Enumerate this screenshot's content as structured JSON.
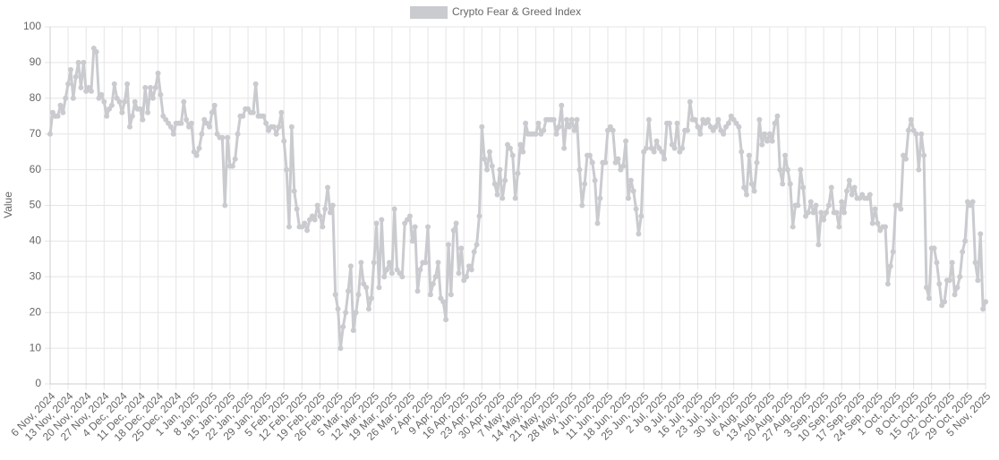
{
  "chart_data": {
    "type": "line",
    "y_label": "Value",
    "legend": "top",
    "grid": true,
    "ylim": [
      0,
      100
    ],
    "yticks": [
      0,
      10,
      20,
      30,
      40,
      50,
      60,
      70,
      80,
      90,
      100
    ],
    "categories": [
      "6 Nov, 2024",
      null,
      null,
      null,
      null,
      null,
      null,
      "13 Nov, 2024",
      null,
      null,
      null,
      null,
      null,
      null,
      "20 Nov, 2024",
      null,
      null,
      null,
      null,
      null,
      null,
      "27 Nov, 2024",
      null,
      null,
      null,
      null,
      null,
      null,
      "4 Dec, 2024",
      null,
      null,
      null,
      null,
      null,
      null,
      "11 Dec, 2024",
      null,
      null,
      null,
      null,
      null,
      null,
      "18 Dec, 2024",
      null,
      null,
      null,
      null,
      null,
      null,
      "25 Dec, 2024",
      null,
      null,
      null,
      null,
      null,
      null,
      "1 Jan, 2025",
      null,
      null,
      null,
      null,
      null,
      null,
      "8 Jan, 2025",
      null,
      null,
      null,
      null,
      null,
      null,
      "15 Jan, 2025",
      null,
      null,
      null,
      null,
      null,
      null,
      "22 Jan, 2025",
      null,
      null,
      null,
      null,
      null,
      null,
      "29 Jan, 2025",
      null,
      null,
      null,
      null,
      null,
      null,
      "5 Feb, 2025",
      null,
      null,
      null,
      null,
      null,
      null,
      "12 Feb, 2025",
      null,
      null,
      null,
      null,
      null,
      null,
      "19 Feb, 2025",
      null,
      null,
      null,
      null,
      null,
      null,
      "26 Feb, 2025",
      null,
      null,
      null,
      null,
      null,
      null,
      "5 Mar, 2025",
      null,
      null,
      null,
      null,
      null,
      null,
      "12 Mar, 2025",
      null,
      null,
      null,
      null,
      null,
      null,
      "19 Mar, 2025",
      null,
      null,
      null,
      null,
      null,
      null,
      "26 Mar, 2025",
      null,
      null,
      null,
      null,
      null,
      null,
      "2 Apr, 2025",
      null,
      null,
      null,
      null,
      null,
      null,
      "9 Apr, 2025",
      null,
      null,
      null,
      null,
      null,
      null,
      "16 Apr, 2025",
      null,
      null,
      null,
      null,
      null,
      null,
      "23 Apr, 2025",
      null,
      null,
      null,
      null,
      null,
      null,
      "30 Apr, 2025",
      null,
      null,
      null,
      null,
      null,
      null,
      "7 May, 2025",
      null,
      null,
      null,
      null,
      null,
      null,
      "14 May, 2025",
      null,
      null,
      null,
      null,
      null,
      null,
      "21 May, 2025",
      null,
      null,
      null,
      null,
      null,
      null,
      "28 May, 2025",
      null,
      null,
      null,
      null,
      null,
      null,
      "4 Jun, 2025",
      null,
      null,
      null,
      null,
      null,
      null,
      "11 Jun, 2025",
      null,
      null,
      null,
      null,
      null,
      null,
      "18 Jun, 2025",
      null,
      null,
      null,
      null,
      null,
      null,
      "25 Jun, 2025",
      null,
      null,
      null,
      null,
      null,
      null,
      "2 Jul, 2025",
      null,
      null,
      null,
      null,
      null,
      null,
      "9 Jul, 2025",
      null,
      null,
      null,
      null,
      null,
      null,
      "16 Jul, 2025",
      null,
      null,
      null,
      null,
      null,
      null,
      "23 Jul, 2025",
      null,
      null,
      null,
      null,
      null,
      null,
      "30 Jul, 2025",
      null,
      null,
      null,
      null,
      null,
      null,
      "6 Aug, 2025",
      null,
      null,
      null,
      null,
      null,
      null,
      "13 Aug, 2025",
      null,
      null,
      null,
      null,
      null,
      null,
      "20 Aug, 2025",
      null,
      null,
      null,
      null,
      null,
      null,
      "27 Aug, 2025",
      null,
      null,
      null,
      null,
      null,
      null,
      "3 Sep, 2025",
      null,
      null,
      null,
      null,
      null,
      null,
      "10 Sep, 2025",
      null,
      null,
      null,
      null,
      null,
      null,
      "17 Sep, 2025",
      null,
      null,
      null,
      null,
      null,
      null,
      "24 Sep, 2025",
      null,
      null,
      null,
      null,
      null,
      null,
      "1 Oct, 2025",
      null,
      null,
      null,
      null,
      null,
      null,
      "8 Oct, 2025",
      null,
      null,
      null,
      null,
      null,
      null,
      "15 Oct, 2025",
      null,
      null,
      null,
      null,
      null,
      null,
      "22 Oct, 2025",
      null,
      null,
      null,
      null,
      null,
      null,
      "29 Oct, 2025",
      null,
      null,
      null,
      null,
      null,
      null,
      "5 Nov, 2025"
    ],
    "series": [
      {
        "name": "Crypto Fear & Greed Index",
        "color": "#c9cbcf",
        "values": [
          70,
          76,
          75,
          75,
          78,
          76,
          80,
          84,
          88,
          80,
          86,
          90,
          83,
          90,
          82,
          83,
          82,
          94,
          93,
          80,
          81,
          79,
          75,
          77,
          78,
          84,
          80,
          79,
          76,
          79,
          84,
          72,
          75,
          79,
          77,
          77,
          74,
          83,
          76,
          83,
          80,
          83,
          87,
          81,
          75,
          74,
          73,
          72,
          70,
          73,
          73,
          73,
          79,
          74,
          72,
          73,
          65,
          64,
          66,
          70,
          74,
          73,
          72,
          76,
          78,
          70,
          69,
          69,
          50,
          69,
          61,
          61,
          63,
          70,
          75,
          75,
          77,
          77,
          76,
          76,
          84,
          75,
          75,
          75,
          73,
          71,
          72,
          72,
          70,
          72,
          76,
          68,
          60,
          44,
          72,
          54,
          49,
          44,
          44,
          45,
          43,
          46,
          47,
          46,
          50,
          47,
          44,
          49,
          55,
          48,
          50,
          25,
          21,
          10,
          16,
          20,
          26,
          33,
          15,
          20,
          25,
          34,
          28,
          27,
          21,
          24,
          34,
          45,
          27,
          46,
          30,
          32,
          34,
          31,
          49,
          32,
          31,
          30,
          45,
          46,
          47,
          40,
          44,
          26,
          32,
          34,
          34,
          44,
          25,
          28,
          30,
          34,
          24,
          23,
          18,
          39,
          25,
          43,
          45,
          31,
          38,
          29,
          30,
          33,
          32,
          37,
          39,
          47,
          72,
          63,
          60,
          65,
          61,
          56,
          53,
          60,
          52,
          57,
          67,
          66,
          64,
          52,
          59,
          67,
          65,
          73,
          70,
          70,
          70,
          70,
          73,
          70,
          71,
          74,
          74,
          74,
          74,
          70,
          72,
          78,
          66,
          74,
          72,
          74,
          71,
          74,
          60,
          50,
          56,
          64,
          64,
          62,
          57,
          45,
          52,
          62,
          62,
          71,
          72,
          71,
          62,
          63,
          60,
          61,
          68,
          52,
          57,
          54,
          49,
          42,
          47,
          65,
          66,
          74,
          66,
          65,
          68,
          66,
          65,
          63,
          73,
          73,
          67,
          66,
          73,
          65,
          66,
          71,
          71,
          79,
          74,
          74,
          72,
          70,
          74,
          73,
          74,
          72,
          71,
          72,
          74,
          71,
          70,
          72,
          73,
          75,
          74,
          73,
          72,
          65,
          55,
          53,
          64,
          56,
          54,
          62,
          74,
          67,
          70,
          68,
          70,
          68,
          73,
          75,
          60,
          56,
          64,
          60,
          56,
          44,
          50,
          50,
          60,
          55,
          47,
          48,
          51,
          48,
          50,
          39,
          48,
          46,
          48,
          50,
          55,
          48,
          48,
          44,
          51,
          48,
          54,
          57,
          53,
          55,
          52,
          52,
          53,
          52,
          52,
          53,
          45,
          49,
          45,
          43,
          44,
          44,
          28,
          33,
          37,
          50,
          50,
          49,
          64,
          63,
          71,
          74,
          71,
          70,
          60,
          70,
          64,
          27,
          24,
          38,
          38,
          34,
          28,
          22,
          23,
          29,
          29,
          34,
          25,
          27,
          30,
          37,
          40,
          51,
          50,
          51,
          34,
          29,
          42,
          21,
          23
        ]
      }
    ]
  }
}
